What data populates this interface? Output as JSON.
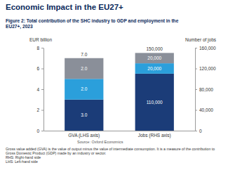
{
  "chart_data": {
    "type": "bar",
    "title": "Economic Impact in the EU27+",
    "subtitle": "Figure 2: Total contribution of the SHC industry to GDP and employment in the EU27+, 2023",
    "y_label": "EUR billion",
    "y2_label": "Number of jobs",
    "categories": [
      "GVA (LHS axis)",
      "Jobs (RHS axis)"
    ],
    "series": [
      {
        "color": "#1b3c78",
        "values": [
          3,
          null
        ],
        "value_labels": [
          "3.0",
          null
        ]
      },
      {
        "color": "#2b9fdb",
        "values": [
          2,
          null
        ],
        "value_labels": [
          "2.0",
          null
        ]
      },
      {
        "color": "#8a8f99",
        "values": [
          2,
          null
        ],
        "value_labels": [
          "2.0",
          null
        ]
      },
      {
        "color": "#1b3c78",
        "values": [
          null,
          110000
        ],
        "value_labels": [
          null,
          "110,000"
        ],
        "axis": "y2"
      },
      {
        "color": "#2b9fdb",
        "values": [
          null,
          20000
        ],
        "value_labels": [
          null,
          "20,000"
        ],
        "axis": "y2"
      },
      {
        "color": "#8a8f99",
        "values": [
          null,
          20000
        ],
        "value_labels": [
          null,
          "20,000"
        ],
        "axis": "y2"
      }
    ],
    "totals": [
      7,
      150000
    ],
    "total_labels": [
      "7.0",
      "150,000"
    ],
    "ylim": [
      0,
      8
    ],
    "yticks": [
      0,
      2,
      4,
      6,
      8
    ],
    "y2lim": [
      0,
      160000
    ],
    "y2ticks": [
      0,
      {
        "value": 40000,
        "label": "40,000"
      },
      {
        "value": 80000,
        "label": "80,000"
      },
      {
        "value": 120000,
        "label": "120,000"
      },
      {
        "value": 160000,
        "label": "160,000"
      }
    ],
    "stacked": true,
    "data_labels": true,
    "grid": false,
    "source": "Source: Oxford Economics",
    "footnotes": [
      "Gross value added (GVA) is the value of output minus the value of intermediate consumption. It is a measure of the contribution to Gross Domestic Product (GDP) made by an industry or sector.",
      "RHS: Right-hand side",
      "LHS: Left-hand side"
    ]
  }
}
